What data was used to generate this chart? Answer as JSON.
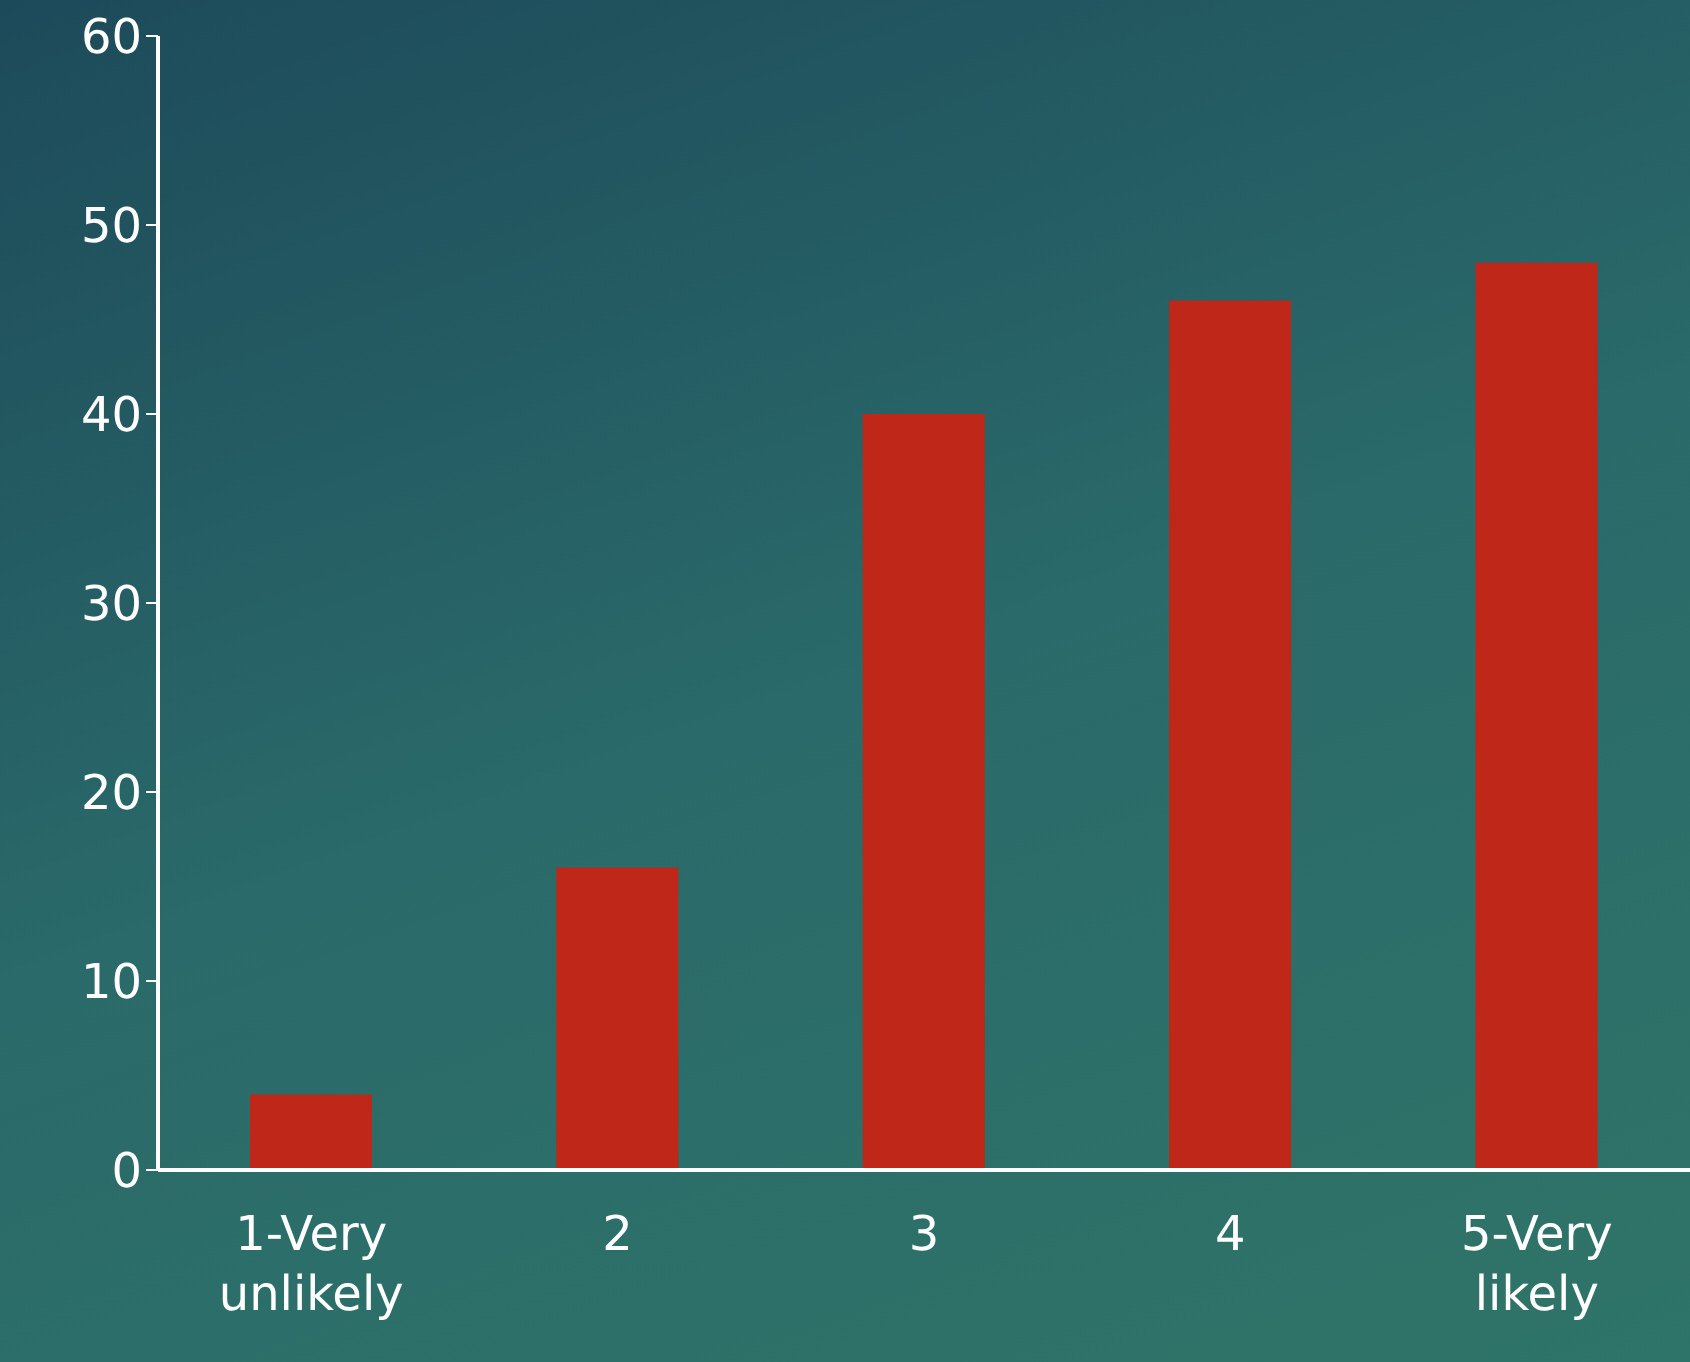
{
  "chart_data": {
    "type": "bar",
    "categories": [
      "1-Very unlikely",
      "2",
      "3",
      "4",
      "5-Very likely"
    ],
    "values": [
      4,
      16,
      40,
      46,
      48
    ],
    "color": "#bf2718",
    "ylim": [
      0,
      60
    ],
    "yticks": [
      0,
      10,
      20,
      30,
      40,
      50,
      60
    ],
    "grid": false
  }
}
